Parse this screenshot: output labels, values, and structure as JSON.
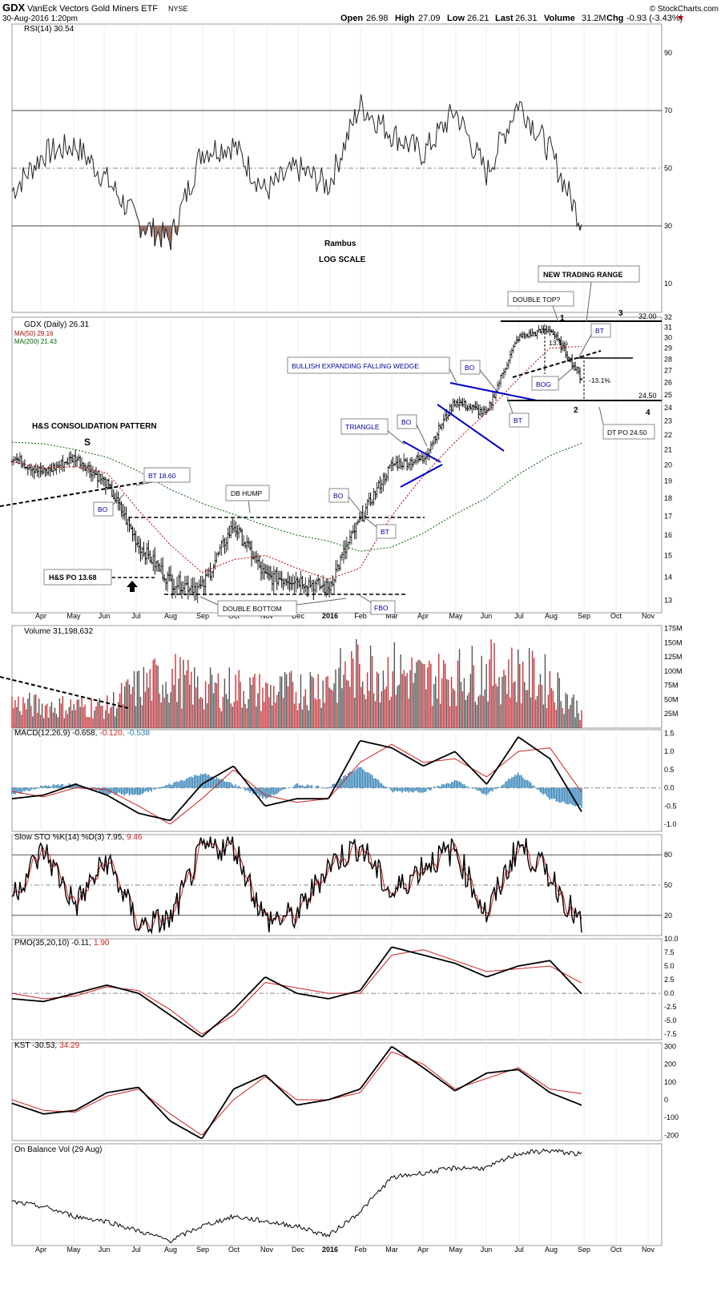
{
  "header": {
    "symbol": "GDX",
    "name": "VanEck Vectors Gold Miners ETF",
    "exchange": "NYSE",
    "datetime": "30-Aug-2016 1:20pm",
    "open_label": "Open",
    "open": "26.98",
    "high_label": "High",
    "high": "27.09",
    "low_label": "Low",
    "low": "26.21",
    "last_label": "Last",
    "last": "26.31",
    "volume_label": "Volume",
    "volume": "31.2M",
    "chg_label": "Chg",
    "chg": "-0.93 (-3.43%)",
    "copyright": "© StockCharts.com"
  },
  "colors": {
    "up": "#c8343c",
    "down": "#333333",
    "ma50": "#b40000",
    "ma200": "#006400",
    "annot": "#0000a0",
    "macd_hist": "#2d7fb5",
    "rsi_fill": "#9b6b5f",
    "signal": "#d02020"
  },
  "months": [
    "Apr",
    "May",
    "Jun",
    "Jul",
    "Aug",
    "Sep",
    "Oct",
    "Nov",
    "Dec",
    "2016",
    "Feb",
    "Mar",
    "Apr",
    "May",
    "Jun",
    "Jul",
    "Aug",
    "Sep",
    "Oct",
    "Nov"
  ],
  "panels": {
    "rsi": {
      "label": "RSI(14) 30.54",
      "ticks": [
        "90",
        "70",
        "50",
        "30",
        "10"
      ]
    },
    "price": {
      "label": "GDX (Daily) 26.31",
      "ma50": "MA(50) 29.16",
      "ma200": "MA(200) 21.43",
      "ticks": [
        "32",
        "31",
        "30",
        "29",
        "28",
        "27",
        "26",
        "25",
        "24",
        "23",
        "22",
        "21",
        "20",
        "19",
        "18",
        "17",
        "16",
        "15",
        "14",
        "13"
      ]
    },
    "volume": {
      "label": "Volume 31,198,632",
      "ticks": [
        "175M",
        "150M",
        "125M",
        "100M",
        "75M",
        "50M",
        "25M"
      ]
    },
    "macd": {
      "label_a": "MACD(12,26,9) -0.658,",
      "label_b": "-0.120,",
      "label_c": "-0.538",
      "ticks": [
        "1.5",
        "1.0",
        "0.5",
        "0.0",
        "-0.5",
        "-1.0"
      ]
    },
    "sto": {
      "label_a": "Slow STO %K(14) %D(3) 7.95,",
      "label_b": "9.46",
      "ticks": [
        "80",
        "50",
        "20"
      ]
    },
    "pmo": {
      "label_a": "PMO(35,20,10) -0.11,",
      "label_b": "1.90",
      "ticks": [
        "10.0",
        "7.5",
        "5.0",
        "2.5",
        "0.0",
        "-2.5",
        "-5.0",
        "-7.5"
      ]
    },
    "kst": {
      "label_a": "KST -30.53,",
      "label_b": "34.29",
      "ticks": [
        "300",
        "200",
        "100",
        "0",
        "-100",
        "-200"
      ]
    },
    "obv": {
      "label": "On Balance Vol (29 Aug)"
    }
  },
  "annotations": {
    "rambus": "Rambus",
    "log_scale": "LOG SCALE",
    "new_trading_range": "NEW TRADING RANGE",
    "double_top": "DOUBLE TOP?",
    "hs_pattern": "H&S CONSOLIDATION PATTERN",
    "s_mark": "S",
    "bt_1860": "BT 18.60",
    "bo": "BO",
    "db_hump": "DB HUMP",
    "hs_po": "H&S PO 13.68",
    "double_bottom": "DOUBLE BOTTOM",
    "fbo": "FBO",
    "bt": "BT",
    "triangle": "TRIANGLE",
    "bullish_wedge": "BULLISH EXPANDING FALLING WEDGE",
    "bog": "BOG",
    "pct_up": "13.1%",
    "pct_down": "-13.1%",
    "dt_po": "DT PO 24.50",
    "lvl_3200": "32.00",
    "lvl_2450": "24.50",
    "n1": "1",
    "n2": "2",
    "n3": "3",
    "n4": "4"
  },
  "chart_data": [
    {
      "type": "line",
      "title": "RSI(14) 30.54",
      "ylim": [
        0,
        100
      ],
      "series": [
        {
          "name": "RSI(14)",
          "x": [
            "Mar-15",
            "Apr-15",
            "May-15",
            "Jun-15",
            "Jul-15",
            "Aug-15",
            "Sep-15",
            "Oct-15",
            "Nov-15",
            "Dec-15",
            "Jan-16",
            "Feb-16",
            "Mar-16",
            "Apr-16",
            "May-16",
            "Jun-16",
            "Jul-16",
            "Aug-16",
            "Aug-30-16"
          ],
          "values": [
            42,
            55,
            58,
            46,
            31,
            25,
            56,
            58,
            42,
            50,
            44,
            72,
            62,
            55,
            70,
            48,
            73,
            56,
            31
          ]
        }
      ]
    },
    {
      "type": "line",
      "title": "GDX (Daily) 26.31",
      "x": [
        "Mar-15",
        "Apr-15",
        "May-15",
        "Jun-15",
        "Jul-15",
        "Aug-15",
        "Sep-15",
        "Oct-15",
        "Nov-15",
        "Dec-15",
        "Jan-16",
        "Feb-16",
        "Mar-16",
        "Apr-16",
        "May-16",
        "Jun-16",
        "Jul-16",
        "Aug-16",
        "Aug-30-16"
      ],
      "series": [
        {
          "name": "GDX",
          "values": [
            20.5,
            19.5,
            20.5,
            18.8,
            15.5,
            13.8,
            13.5,
            16.5,
            14.0,
            13.9,
            13.5,
            16.8,
            20.0,
            20.4,
            24.5,
            23.5,
            30.0,
            30.8,
            26.31
          ]
        },
        {
          "name": "MA(50)",
          "values": [
            20.2,
            19.8,
            19.9,
            19.5,
            17.3,
            15.5,
            14.2,
            14.8,
            15.0,
            14.4,
            13.9,
            14.4,
            17.0,
            19.3,
            21.5,
            23.6,
            26.3,
            29.0,
            29.16
          ]
        },
        {
          "name": "MA(200)",
          "values": [
            21.5,
            21.4,
            21.0,
            20.5,
            19.6,
            18.5,
            17.7,
            17.1,
            16.5,
            16.0,
            15.7,
            15.2,
            15.4,
            16.1,
            17.1,
            18.0,
            19.4,
            20.6,
            21.43
          ]
        }
      ],
      "yscale": "log",
      "ylim": [
        12.5,
        32
      ]
    },
    {
      "type": "bar",
      "title": "Volume 31,198,632",
      "ylim": [
        0,
        175000000
      ],
      "categories": [
        "Mar-15",
        "Apr-15",
        "May-15",
        "Jun-15",
        "Jul-15",
        "Aug-15",
        "Sep-15",
        "Oct-15",
        "Nov-15",
        "Dec-15",
        "Jan-16",
        "Feb-16",
        "Mar-16",
        "Apr-16",
        "May-16",
        "Jun-16",
        "Jul-16",
        "Aug-16",
        "Aug-30-16"
      ],
      "values": [
        45000000,
        40000000,
        40000000,
        38000000,
        75000000,
        95000000,
        70000000,
        75000000,
        65000000,
        70000000,
        85000000,
        110000000,
        105000000,
        90000000,
        95000000,
        105000000,
        100000000,
        85000000,
        31198632
      ]
    },
    {
      "type": "line",
      "title": "MACD(12,26,9) -0.658, -0.120, -0.538",
      "ylim": [
        -1.2,
        1.6
      ],
      "x": [
        "Mar-15",
        "Apr-15",
        "May-15",
        "Jun-15",
        "Jul-15",
        "Aug-15",
        "Sep-15",
        "Oct-15",
        "Nov-15",
        "Dec-15",
        "Jan-16",
        "Feb-16",
        "Mar-16",
        "Apr-16",
        "May-16",
        "Jun-16",
        "Jul-16",
        "Aug-16",
        "Aug-30-16"
      ],
      "series": [
        {
          "name": "MACD",
          "values": [
            -0.3,
            -0.2,
            0.1,
            -0.2,
            -0.7,
            -0.9,
            0.1,
            0.6,
            -0.5,
            -0.3,
            -0.3,
            1.3,
            1.1,
            0.6,
            1.0,
            0.1,
            1.4,
            0.8,
            -0.658
          ]
        },
        {
          "name": "Signal",
          "values": [
            -0.1,
            -0.25,
            0.0,
            -0.05,
            -0.5,
            -1.0,
            -0.3,
            0.5,
            -0.2,
            -0.4,
            -0.3,
            0.7,
            1.2,
            0.7,
            0.8,
            0.3,
            1.0,
            1.1,
            -0.12
          ]
        },
        {
          "name": "Histogram",
          "values": [
            -0.2,
            0.05,
            0.1,
            -0.15,
            -0.2,
            0.1,
            0.4,
            0.1,
            -0.3,
            0.1,
            0.0,
            0.6,
            -0.1,
            -0.1,
            0.2,
            -0.2,
            0.4,
            -0.3,
            -0.538
          ]
        }
      ]
    },
    {
      "type": "line",
      "title": "Slow STO %K(14) %D(3) 7.95, 9.46",
      "ylim": [
        0,
        100
      ],
      "x": [
        "Mar-15",
        "Apr-15",
        "May-15",
        "Jun-15",
        "Jul-15",
        "Aug-15",
        "Sep-15",
        "Oct-15",
        "Nov-15",
        "Dec-15",
        "Jan-16",
        "Feb-16",
        "Mar-16",
        "Apr-16",
        "May-16",
        "Jun-16",
        "Jul-16",
        "Aug-16",
        "Aug-30-16"
      ],
      "series": [
        {
          "name": "%K",
          "values": [
            40,
            85,
            30,
            75,
            10,
            15,
            85,
            90,
            15,
            20,
            70,
            90,
            40,
            70,
            85,
            20,
            90,
            60,
            7.95
          ]
        },
        {
          "name": "%D",
          "values": [
            45,
            80,
            35,
            70,
            12,
            20,
            80,
            85,
            20,
            22,
            65,
            85,
            45,
            68,
            80,
            25,
            85,
            65,
            9.46
          ]
        }
      ]
    },
    {
      "type": "line",
      "title": "PMO(35,20,10) -0.11, 1.90",
      "ylim": [
        -8.5,
        10
      ],
      "x": [
        "Mar-15",
        "Apr-15",
        "May-15",
        "Jun-15",
        "Jul-15",
        "Aug-15",
        "Sep-15",
        "Oct-15",
        "Nov-15",
        "Dec-15",
        "Jan-16",
        "Feb-16",
        "Mar-16",
        "Apr-16",
        "May-16",
        "Jun-16",
        "Jul-16",
        "Aug-16",
        "Aug-30-16"
      ],
      "series": [
        {
          "name": "PMO",
          "values": [
            -1,
            -1.5,
            0,
            1.5,
            0,
            -4,
            -8,
            -3,
            3,
            0,
            -1,
            0.5,
            8.5,
            7.0,
            5.5,
            3,
            5,
            6,
            -0.11
          ]
        },
        {
          "name": "Signal",
          "values": [
            0,
            -1,
            -0.5,
            1.2,
            0.5,
            -3,
            -7.5,
            -4,
            2,
            1,
            0,
            0,
            7,
            8,
            6,
            4,
            4.5,
            5,
            1.9
          ]
        }
      ]
    },
    {
      "type": "line",
      "title": "KST -30.53, 34.29",
      "ylim": [
        -230,
        320
      ],
      "x": [
        "Mar-15",
        "Apr-15",
        "May-15",
        "Jun-15",
        "Jul-15",
        "Aug-15",
        "Sep-15",
        "Oct-15",
        "Nov-15",
        "Dec-15",
        "Jan-16",
        "Feb-16",
        "Mar-16",
        "Apr-16",
        "May-16",
        "Jun-16",
        "Jul-16",
        "Aug-16",
        "Aug-30-16"
      ],
      "series": [
        {
          "name": "KST",
          "values": [
            -20,
            -80,
            -60,
            40,
            70,
            -120,
            -220,
            60,
            140,
            -30,
            0,
            60,
            300,
            180,
            50,
            150,
            170,
            40,
            -30.53
          ]
        },
        {
          "name": "Signal",
          "values": [
            0,
            -60,
            -70,
            20,
            60,
            -80,
            -200,
            0,
            130,
            0,
            0,
            40,
            270,
            200,
            60,
            120,
            180,
            60,
            34.29
          ]
        }
      ]
    },
    {
      "type": "line",
      "title": "On Balance Vol (29 Aug)",
      "x": [
        "Mar-15",
        "Apr-15",
        "May-15",
        "Jun-15",
        "Jul-15",
        "Aug-15",
        "Sep-15",
        "Oct-15",
        "Nov-15",
        "Dec-15",
        "Jan-16",
        "Feb-16",
        "Mar-16",
        "Apr-16",
        "May-16",
        "Jun-16",
        "Jul-16",
        "Aug-16",
        "Aug-30-16"
      ],
      "series": [
        {
          "name": "OBV",
          "values": [
            45,
            40,
            30,
            25,
            15,
            5,
            20,
            30,
            25,
            20,
            10,
            35,
            70,
            75,
            80,
            80,
            95,
            98,
            94
          ]
        }
      ]
    }
  ]
}
